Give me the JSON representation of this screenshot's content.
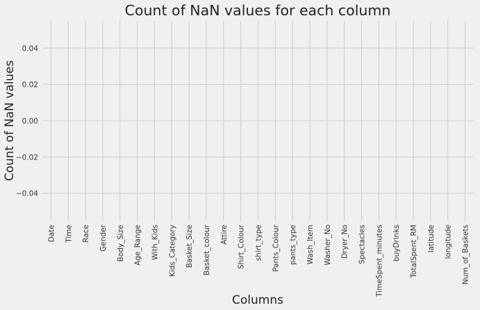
{
  "chart_data": {
    "type": "bar",
    "title": "Count of NaN values for each column",
    "xlabel": "Columns",
    "ylabel": "Count of NaN values",
    "categories": [
      "Date",
      "Time",
      "Race",
      "Gender",
      "Body_Size",
      "Age_Range",
      "With_Kids",
      "Kids_Category",
      "Basket_Size",
      "Basket_colour",
      "Attire",
      "Shirt_Colour",
      "shirt_type",
      "Pants_Colour",
      "pants_type",
      "Wash_Item",
      "Washer_No",
      "Dryer_No",
      "Spectacles",
      "TimeSpent_minutes",
      "buyDrinks",
      "TotalSpent_RM",
      "latitude",
      "longitude",
      "Num_of_Baskets"
    ],
    "values": [
      0,
      0,
      0,
      0,
      0,
      0,
      0,
      0,
      0,
      0,
      0,
      0,
      0,
      0,
      0,
      0,
      0,
      0,
      0,
      0,
      0,
      0,
      0,
      0,
      0
    ],
    "yticks": [
      "0.04",
      "0.02",
      "0.00",
      "−0.02",
      "−0.04"
    ],
    "ytick_values": [
      0.04,
      0.02,
      0.0,
      -0.02,
      -0.04
    ],
    "ylim": [
      -0.055,
      0.055
    ],
    "grid": true,
    "colors": {
      "background": "#f0f0f0",
      "grid": "#cbcbcb",
      "text": "#222222",
      "bar": "#008fd5"
    }
  }
}
